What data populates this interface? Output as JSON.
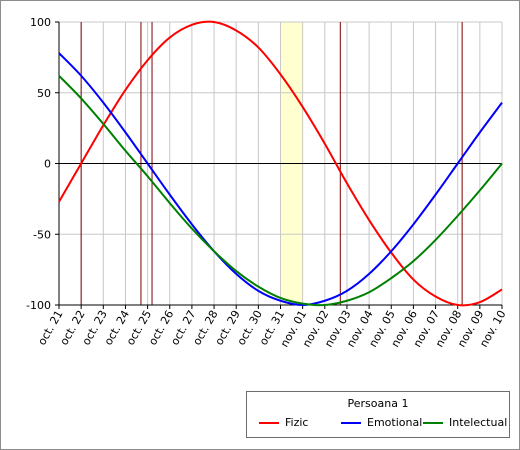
{
  "chart_data": {
    "type": "line",
    "title": "",
    "xlabel": "",
    "ylabel": "",
    "ylim": [
      -100,
      100
    ],
    "yticks": [
      100,
      50,
      0,
      -50,
      -100
    ],
    "x": [
      "oct. 21",
      "oct. 22",
      "oct. 23",
      "oct. 24",
      "oct. 25",
      "oct. 26",
      "oct. 27",
      "oct. 28",
      "oct. 29",
      "oct. 30",
      "oct. 31",
      "nov. 01",
      "nov. 02",
      "nov. 03",
      "nov. 04",
      "nov. 05",
      "nov. 06",
      "nov. 07",
      "nov. 08",
      "nov. 09",
      "nov. 10"
    ],
    "series": [
      {
        "name": "Fizic",
        "color": "#ff0000",
        "values": [
          -27,
          0,
          27,
          52,
          73,
          89,
          98,
          100,
          94,
          82,
          63,
          40,
          14,
          -14,
          -40,
          -63,
          -82,
          -94,
          -100,
          -98,
          -89
        ]
      },
      {
        "name": "Emotional",
        "color": "#0000ff",
        "values": [
          78,
          62,
          43,
          22,
          0,
          -22,
          -43,
          -62,
          -78,
          -90,
          -97,
          -100,
          -97,
          -90,
          -78,
          -62,
          -43,
          -22,
          0,
          22,
          43
        ]
      },
      {
        "name": "Intelectual",
        "color": "#008000",
        "values": [
          62,
          46,
          28,
          9,
          -9,
          -28,
          -46,
          -62,
          -76,
          -87,
          -95,
          -99,
          -100,
          -97,
          -91,
          -81,
          -69,
          -54,
          -37,
          -19,
          0
        ]
      }
    ],
    "highlight_band": {
      "from": 10,
      "to": 11,
      "color": "#ffffd0"
    },
    "vertical_markers": [
      1,
      3.7,
      4.2,
      12.7,
      18.2
    ],
    "marker_color": "#800000",
    "grid": true,
    "legend": {
      "title": "Persoana 1",
      "placement": "bottom-right"
    }
  }
}
